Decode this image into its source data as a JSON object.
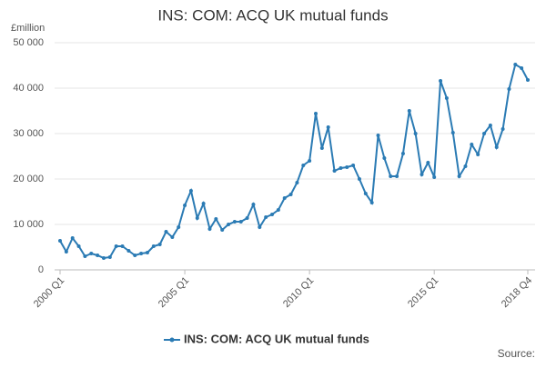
{
  "chart_data": {
    "type": "line",
    "title": "INS: COM: ACQ UK mutual funds",
    "y_label": "£million",
    "source": "Source:",
    "categories": [
      "2000 Q1",
      null,
      null,
      null,
      null,
      null,
      null,
      null,
      null,
      null,
      null,
      null,
      null,
      null,
      null,
      null,
      null,
      null,
      null,
      null,
      "2005 Q1",
      null,
      null,
      null,
      null,
      null,
      null,
      null,
      null,
      null,
      null,
      null,
      null,
      null,
      null,
      null,
      null,
      null,
      null,
      null,
      "2010 Q1",
      null,
      null,
      null,
      null,
      null,
      null,
      null,
      null,
      null,
      null,
      null,
      null,
      null,
      null,
      null,
      null,
      null,
      null,
      null,
      "2015 Q1",
      null,
      null,
      null,
      null,
      null,
      null,
      null,
      null,
      null,
      null,
      null,
      null,
      null,
      null,
      "2018 Q4"
    ],
    "series": [
      {
        "name": "INS: COM: ACQ UK mutual funds",
        "color": "#2b7bb4",
        "values": [
          6400,
          4000,
          7000,
          5200,
          3000,
          3600,
          3200,
          2600,
          2800,
          5200,
          5200,
          4200,
          3200,
          3600,
          3800,
          5200,
          5600,
          8400,
          7200,
          9400,
          14200,
          17400,
          11400,
          14600,
          9000,
          11200,
          8800,
          10000,
          10600,
          10600,
          11400,
          14400,
          9400,
          11600,
          12200,
          13200,
          15800,
          16600,
          19200,
          23000,
          24000,
          34400,
          26800,
          31400,
          21800,
          22400,
          22600,
          23000,
          20000,
          16800,
          14800,
          29600,
          24600,
          20600,
          20600,
          25600,
          35000,
          30000,
          21000,
          23600,
          20400,
          41600,
          37800,
          30200,
          20600,
          22800,
          27600,
          25400,
          30000,
          31800,
          27000,
          31000,
          39800,
          45200,
          44400,
          41800
        ]
      }
    ],
    "ylim": [
      0,
      50000
    ],
    "yticks": [
      0,
      {
        "value": 10000,
        "label": "10 000"
      },
      {
        "value": 20000,
        "label": "20 000"
      },
      {
        "value": 30000,
        "label": "30 000"
      },
      {
        "value": 40000,
        "label": "40 000"
      },
      {
        "value": 50000,
        "label": "50 000"
      }
    ],
    "grid": true
  }
}
